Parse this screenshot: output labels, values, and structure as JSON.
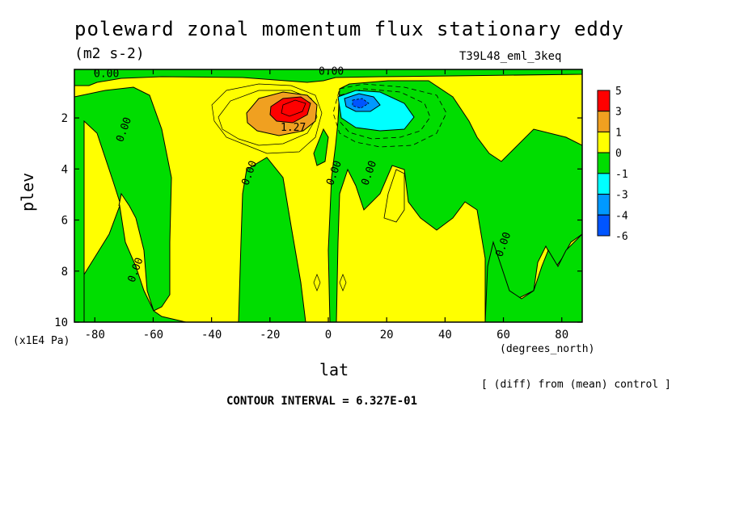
{
  "chart_data": {
    "type": "contour",
    "title": "poleward zonal momentum flux stationary eddy",
    "units": "(m2 s-2)",
    "run_label": "T39L48_eml_3keq",
    "xlabel": "lat",
    "xunit": "(degrees_north)",
    "ylabel": "plev",
    "yunit": "(x1E4 Pa)",
    "xlim": [
      -87,
      87
    ],
    "ylim": [
      10,
      0.1
    ],
    "y_inverted": true,
    "xticks": [
      -80,
      -60,
      -40,
      -20,
      0,
      20,
      40,
      60,
      80
    ],
    "yticks": [
      2,
      4,
      6,
      8,
      10
    ],
    "contour_interval_text": "CONTOUR INTERVAL = 6.327E-01",
    "note": "[ (diff) from (mean) control ]",
    "contour_labels": [
      {
        "text": "0.00",
        "lat": -76,
        "plev": 0.4
      },
      {
        "text": "0.00",
        "lat": -69,
        "plev": 2.5
      },
      {
        "text": "0.00",
        "lat": -65,
        "plev": 8.0
      },
      {
        "text": "1.27",
        "lat": -12,
        "plev": 2.5
      },
      {
        "text": "0.00",
        "lat": -26,
        "plev": 4.2
      },
      {
        "text": "0.00",
        "lat": 1,
        "plev": 0.3
      },
      {
        "text": "0.00",
        "lat": 3,
        "plev": 4.2
      },
      {
        "text": "0.00",
        "lat": 15,
        "plev": 4.2
      },
      {
        "text": "0.00",
        "lat": 61,
        "plev": 7.0
      }
    ],
    "colorbar": {
      "labels": [
        "5",
        "3",
        "1",
        "0",
        "-1",
        "-3",
        "-4",
        "-6"
      ],
      "colors": [
        "#ff0000",
        "#f0a020",
        "#ffff00",
        "#00dd00",
        "#00ffff",
        "#0099ff",
        "#0055ff"
      ]
    },
    "fill_colors": {
      "positive_high": "#ff0000",
      "positive_mid": "#f0a020",
      "positive_low": "#ffff00",
      "negative_low": "#00dd00",
      "negative_mid": "#00ffff",
      "negative_high": "#0099ff",
      "negative_max": "#0055ff"
    }
  }
}
